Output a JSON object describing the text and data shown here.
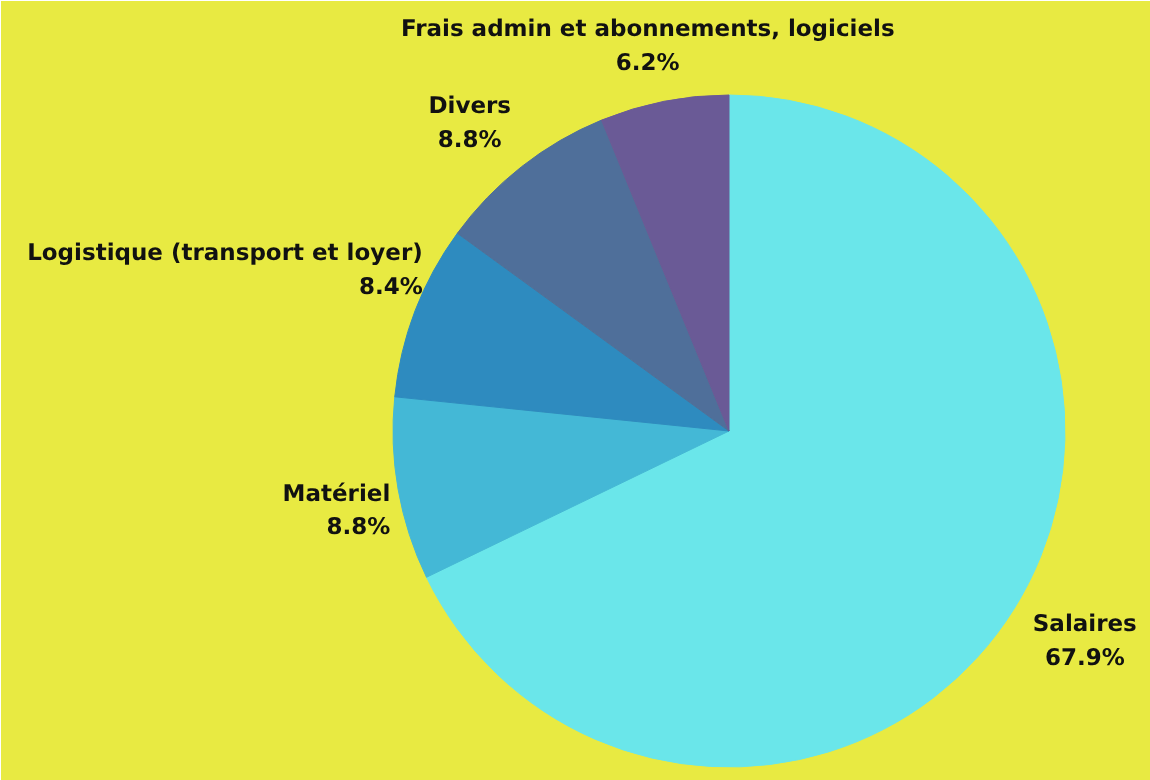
{
  "chart_data": {
    "type": "pie",
    "categories": [
      "Salaires",
      "Matériel",
      "Logistique (transport et loyer)",
      "Divers",
      "Frais admin et abonnements, logiciels"
    ],
    "values": [
      67.9,
      8.8,
      8.4,
      8.8,
      6.2
    ],
    "colors": [
      "#6ae6ea",
      "#44b8d6",
      "#2e8bbf",
      "#4f6f9a",
      "#6a5a96"
    ],
    "value_labels": [
      "67.9%",
      "8.8%",
      "8.4%",
      "8.8%",
      "6.2%"
    ]
  }
}
